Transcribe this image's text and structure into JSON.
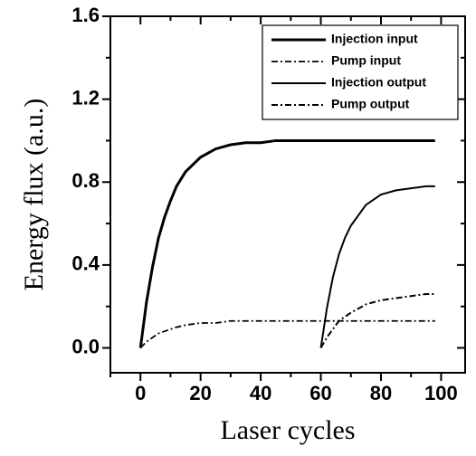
{
  "chart_data": {
    "type": "line",
    "x_label": "Laser cycles",
    "y_label": "Energy flux  (a.u.)",
    "x": [
      0,
      2,
      4,
      6,
      8,
      10,
      12,
      15,
      20,
      25,
      30,
      35,
      40,
      45,
      50,
      55,
      60,
      62,
      64,
      66,
      68,
      70,
      75,
      80,
      85,
      90,
      95,
      98
    ],
    "series": [
      {
        "name": "Injection input",
        "color": "#000000",
        "style": "solid",
        "linewidth": 3,
        "values": [
          0,
          0.22,
          0.39,
          0.53,
          0.63,
          0.71,
          0.78,
          0.85,
          0.92,
          0.96,
          0.98,
          0.99,
          0.99,
          1.0,
          1.0,
          1.0,
          1.0,
          1.0,
          1.0,
          1.0,
          1.0,
          1.0,
          1.0,
          1.0,
          1.0,
          1.0,
          1.0,
          1.0
        ]
      },
      {
        "name": "Pump input",
        "color": "#000000",
        "style": "dashdot",
        "linewidth": 1.8,
        "values": [
          0,
          0.03,
          0.05,
          0.07,
          0.08,
          0.09,
          0.1,
          0.11,
          0.12,
          0.12,
          0.13,
          0.13,
          0.13,
          0.13,
          0.13,
          0.13,
          0.13,
          0.13,
          0.13,
          0.13,
          0.13,
          0.13,
          0.13,
          0.13,
          0.13,
          0.13,
          0.13,
          0.13
        ]
      },
      {
        "name": "Injection output",
        "color": "#000000",
        "style": "solid",
        "linewidth": 2,
        "values": [
          null,
          null,
          null,
          null,
          null,
          null,
          null,
          null,
          null,
          null,
          null,
          null,
          null,
          null,
          null,
          null,
          0,
          0.19,
          0.34,
          0.45,
          0.53,
          0.59,
          0.69,
          0.74,
          0.76,
          0.77,
          0.78,
          0.78
        ]
      },
      {
        "name": "Pump output",
        "color": "#000000",
        "style": "dashdot",
        "linewidth": 2,
        "values": [
          null,
          null,
          null,
          null,
          null,
          null,
          null,
          null,
          null,
          null,
          null,
          null,
          null,
          null,
          null,
          null,
          0,
          0.05,
          0.09,
          0.13,
          0.15,
          0.17,
          0.21,
          0.23,
          0.24,
          0.25,
          0.26,
          0.26
        ]
      }
    ],
    "xlim": [
      -10,
      108
    ],
    "xticks": [
      0,
      20,
      40,
      60,
      80,
      100
    ],
    "xminorticks": [
      -10,
      10,
      30,
      50,
      70,
      90
    ],
    "ylim": [
      -0.12,
      1.6
    ],
    "yticks": [
      {
        "value": 0,
        "label": "0.0"
      },
      0.4,
      0.8,
      1.2,
      1.6
    ],
    "yminorticks": [
      0.2,
      0.6,
      1.0,
      1.4
    ],
    "legend": "upper right"
  }
}
